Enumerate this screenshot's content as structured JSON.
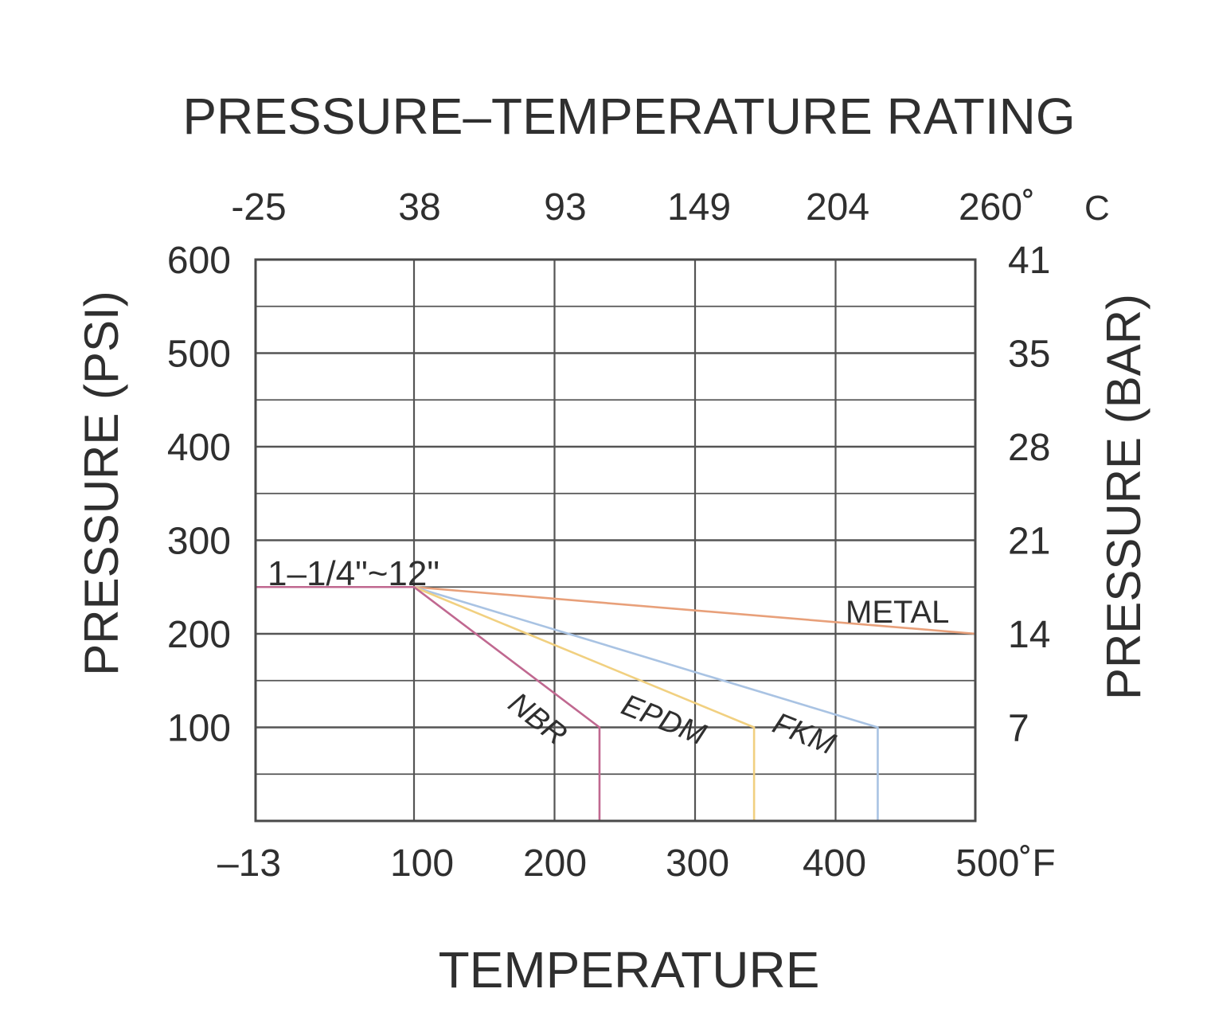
{
  "chart_data": {
    "type": "line",
    "title": "PRESSURE–TEMPERATURE RATING",
    "xlabel": "TEMPERATURE",
    "ylabel_left": "PRESSURE (PSI)",
    "ylabel_right": "PRESSURE (BAR)",
    "xlim": [
      -13,
      500
    ],
    "ylim": [
      0,
      600
    ],
    "x_ticks_f": [
      "–13",
      "100",
      "200",
      "300",
      "400",
      "500˚F"
    ],
    "x_ticks_c": [
      "-25",
      "38",
      "93",
      "149",
      "204",
      "260˚"
    ],
    "x_unit_c": "C",
    "y_ticks_left": [
      "600",
      "500",
      "400",
      "300",
      "200",
      "100"
    ],
    "y_ticks_right": [
      "41",
      "35",
      "28",
      "21",
      "14",
      "7"
    ],
    "grid": true,
    "size_label": "1–1/4\"~12\"",
    "series": [
      {
        "name": "METAL",
        "color": "#e8a07a",
        "x": [
          -13,
          100,
          500
        ],
        "y": [
          250,
          250,
          200
        ]
      },
      {
        "name": "FKM",
        "color": "#a9c3e3",
        "x": [
          -13,
          100,
          430,
          430
        ],
        "y": [
          250,
          250,
          100,
          0
        ]
      },
      {
        "name": "EPDM",
        "color": "#f1d080",
        "x": [
          -13,
          100,
          342,
          342
        ],
        "y": [
          250,
          250,
          100,
          0
        ]
      },
      {
        "name": "NBR",
        "color": "#c06890",
        "x": [
          -13,
          100,
          232,
          232
        ],
        "y": [
          250,
          250,
          100,
          0
        ]
      }
    ],
    "colors": {
      "axis": "#4a4a4a",
      "grid": "#555555",
      "text": "#2f2f2f"
    }
  }
}
